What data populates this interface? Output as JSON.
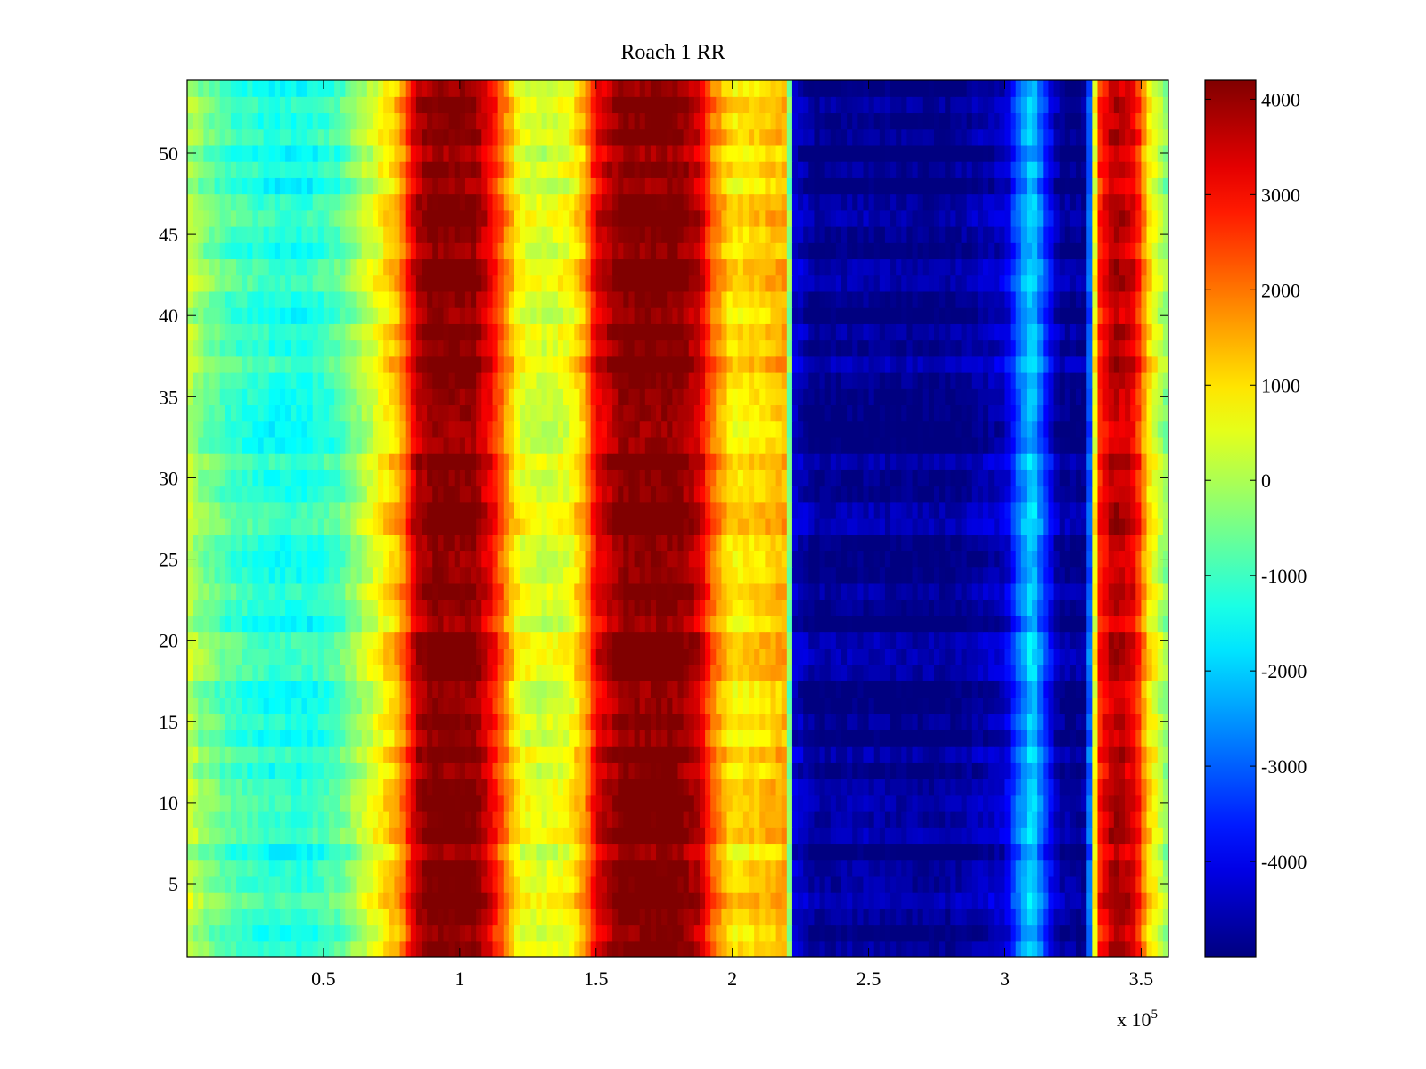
{
  "chart_data": {
    "type": "heatmap",
    "title": "Roach 1 RR",
    "xlabel": "",
    "ylabel": "",
    "x_exponent_label": "x 10",
    "x_exponent_power": "5",
    "xlim": [
      0,
      3.6
    ],
    "ylim": [
      0.5,
      54.5
    ],
    "x_ticks": [
      0.5,
      1,
      1.5,
      2,
      2.5,
      3,
      3.5
    ],
    "x_tick_labels": [
      "0.5",
      "1",
      "1.5",
      "2",
      "2.5",
      "3",
      "3.5"
    ],
    "y_ticks": [
      5,
      10,
      15,
      20,
      25,
      30,
      35,
      40,
      45,
      50
    ],
    "y_tick_labels": [
      "5",
      "10",
      "15",
      "20",
      "25",
      "30",
      "35",
      "40",
      "45",
      "50"
    ],
    "rows": 54,
    "colorbar": {
      "clim": [
        -5000,
        4200
      ],
      "ticks": [
        4000,
        3000,
        2000,
        1000,
        0,
        -1000,
        -2000,
        -3000,
        -4000
      ],
      "tick_labels": [
        "4000",
        "3000",
        "2000",
        "1000",
        "0",
        "-1000",
        "-2000",
        "-3000",
        "-4000"
      ],
      "colormap": "jet",
      "placement": "right"
    },
    "column_profile": {
      "x": [
        0,
        0.05,
        0.15,
        0.3,
        0.45,
        0.55,
        0.62,
        0.7,
        0.78,
        0.84,
        0.9,
        1.05,
        1.12,
        1.18,
        1.22,
        1.3,
        1.4,
        1.46,
        1.5,
        1.6,
        1.8,
        1.88,
        1.93,
        2.0,
        2.1,
        2.2,
        2.23,
        2.3,
        2.5,
        2.6,
        2.8,
        3.0,
        3.05,
        3.1,
        3.15,
        3.2,
        3.3,
        3.34,
        3.4,
        3.48,
        3.52,
        3.6
      ],
      "values": [
        200,
        -300,
        -900,
        -1300,
        -1300,
        -900,
        -200,
        600,
        1500,
        3600,
        4200,
        4100,
        3000,
        1500,
        600,
        300,
        600,
        1500,
        3200,
        4200,
        4200,
        3500,
        2000,
        900,
        1100,
        1500,
        -4300,
        -4900,
        -4800,
        -4900,
        -4900,
        -4400,
        -3000,
        -1800,
        -3500,
        -4800,
        -4900,
        2500,
        3800,
        3200,
        1200,
        -500
      ]
    },
    "grid": false
  }
}
